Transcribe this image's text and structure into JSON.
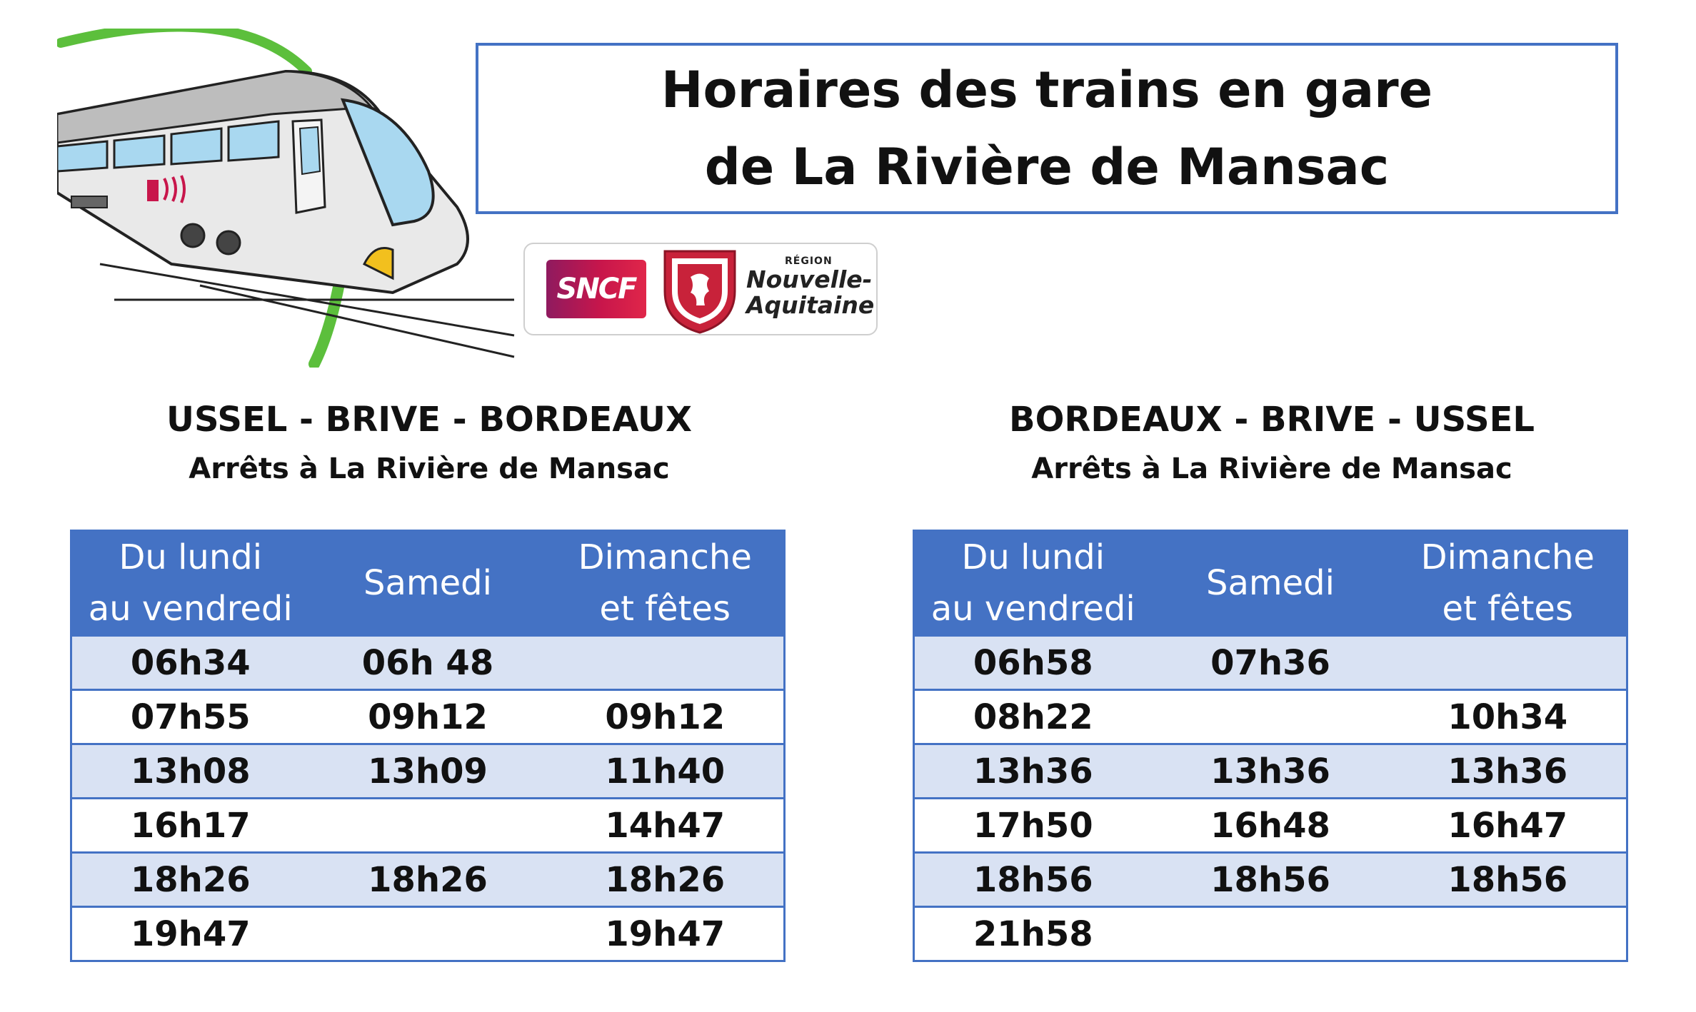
{
  "header": {
    "title_line1": "Horaires des trains en gare",
    "title_line2": "de La Rivière de Mansac"
  },
  "logos": {
    "sncf": "SNCF",
    "region_small": "RÉGION",
    "region_line1": "Nouvelle-",
    "region_line2": "Aquitaine"
  },
  "icons": [
    "train-icon",
    "lion-shield-icon"
  ],
  "colors": {
    "accent": "#4472c4",
    "row_alt": "#d9e2f3",
    "arc": "#5cbf3c"
  },
  "timetables": [
    {
      "route": "USSEL - BRIVE - BORDEAUX",
      "subtitle": "Arrêts à La Rivière de Mansac",
      "columns": [
        {
          "line1": "Du lundi",
          "line2": "au vendredi"
        },
        {
          "line1": "Samedi",
          "line2": ""
        },
        {
          "line1": "Dimanche",
          "line2": "et fêtes"
        }
      ],
      "rows": [
        [
          "06h34",
          "06h 48",
          ""
        ],
        [
          "07h55",
          "09h12",
          "09h12"
        ],
        [
          "13h08",
          "13h09",
          "11h40"
        ],
        [
          "16h17",
          "",
          "14h47"
        ],
        [
          "18h26",
          "18h26",
          "18h26"
        ],
        [
          "19h47",
          "",
          "19h47"
        ]
      ]
    },
    {
      "route": "BORDEAUX - BRIVE - USSEL",
      "subtitle": "Arrêts à La Rivière de Mansac",
      "columns": [
        {
          "line1": "Du lundi",
          "line2": "au vendredi"
        },
        {
          "line1": "Samedi",
          "line2": ""
        },
        {
          "line1": "Dimanche",
          "line2": "et fêtes"
        }
      ],
      "rows": [
        [
          "06h58",
          "07h36",
          ""
        ],
        [
          "08h22",
          "",
          "10h34"
        ],
        [
          "13h36",
          "13h36",
          "13h36"
        ],
        [
          "17h50",
          "16h48",
          "16h47"
        ],
        [
          "18h56",
          "18h56",
          "18h56"
        ],
        [
          "21h58",
          "",
          ""
        ]
      ]
    }
  ]
}
